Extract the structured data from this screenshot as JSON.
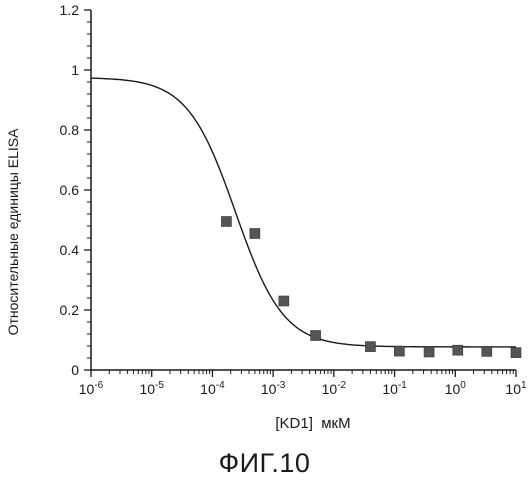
{
  "figure": {
    "caption": "ФИГ.10"
  },
  "chart_data": {
    "type": "scatter",
    "title": "",
    "xlabel": "[KD1]  мкМ",
    "ylabel": "Относительные единицы ELISA",
    "x_scale": "log",
    "xlim": [
      1e-06,
      10
    ],
    "ylim": [
      0,
      1.2
    ],
    "x_ticks": [
      {
        "base": "10",
        "exp": "-6"
      },
      {
        "base": "10",
        "exp": "-5"
      },
      {
        "base": "10",
        "exp": "-4"
      },
      {
        "base": "10",
        "exp": "-3"
      },
      {
        "base": "10",
        "exp": "-2"
      },
      {
        "base": "10",
        "exp": "-1"
      },
      {
        "base": "10",
        "exp": "0"
      },
      {
        "base": "10",
        "exp": "1"
      }
    ],
    "y_ticks": [
      "0",
      "0.2",
      "0.4",
      "0.6",
      "0.8",
      "1",
      "1.2"
    ],
    "grid": false,
    "legend": "none",
    "series": [
      {
        "marker": "square",
        "x": [
          0.00017,
          0.0005,
          0.0015,
          0.005,
          0.04,
          0.12,
          0.37,
          1.1,
          3.3,
          10
        ],
        "y": [
          0.495,
          0.455,
          0.23,
          0.115,
          0.078,
          0.063,
          0.06,
          0.066,
          0.062,
          0.058
        ]
      }
    ],
    "fit_curve": {
      "type": "4PL",
      "top": 0.975,
      "bottom": 0.077,
      "ec50": 0.00024,
      "hill": 1.1
    },
    "colors": {
      "ink": "#1a1a1a",
      "marker": "#555555"
    }
  }
}
